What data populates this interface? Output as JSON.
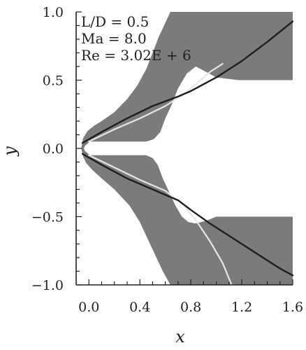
{
  "chart_data": {
    "type": "contour",
    "description_free": true,
    "xlabel": "x",
    "ylabel": "y",
    "xlim": [
      -0.1,
      1.6
    ],
    "ylim": [
      -1.0,
      1.0
    ],
    "x_ticks": [
      {
        "value": 0.0,
        "label": "0.0"
      },
      {
        "value": 0.4,
        "label": "0.4"
      },
      {
        "value": 0.8,
        "label": "0.8"
      },
      {
        "value": 1.2,
        "label": "1.2"
      },
      {
        "value": 1.6,
        "label": "1.6"
      }
    ],
    "y_ticks": [
      {
        "value": 1.0,
        "label": "1.0"
      },
      {
        "value": 0.5,
        "label": "0.5"
      },
      {
        "value": 0.0,
        "label": "0.0"
      },
      {
        "value": -0.5,
        "label": "−0.5"
      },
      {
        "value": -1.0,
        "label": "−1.0"
      }
    ],
    "annotations": [
      "L/D = 0.5",
      "Ma = 8.0",
      "Re = 3.02E + 6"
    ],
    "colors": {
      "field": "#7b7b7b",
      "shock_dark": "#1e1e1e",
      "shock_light": "#e6e6e6",
      "axis": "#231f20"
    },
    "domain_upper": [
      [
        -0.06,
        0.0
      ],
      [
        -0.045,
        0.075
      ],
      [
        -0.01,
        0.128
      ],
      [
        0.04,
        0.165
      ],
      [
        0.1,
        0.2
      ],
      [
        0.2,
        0.265
      ],
      [
        0.3,
        0.36
      ],
      [
        0.38,
        0.46
      ],
      [
        0.45,
        0.58
      ],
      [
        0.5,
        0.7
      ],
      [
        0.55,
        0.82
      ],
      [
        0.6,
        0.92
      ],
      [
        0.64,
        1.0
      ],
      [
        1.6,
        1.0
      ],
      [
        1.6,
        0.5
      ],
      [
        1.18,
        0.5
      ],
      [
        1.0,
        0.52
      ],
      [
        0.92,
        0.56
      ],
      [
        0.84,
        0.6
      ],
      [
        0.77,
        0.55
      ],
      [
        0.7,
        0.44
      ],
      [
        0.65,
        0.32
      ],
      [
        0.6,
        0.22
      ],
      [
        0.56,
        0.12
      ],
      [
        0.51,
        0.068
      ],
      [
        0.45,
        0.05
      ],
      [
        0.01,
        0.05
      ],
      [
        -0.03,
        0.02
      ],
      [
        -0.04,
        0.0
      ]
    ],
    "domain_lower": [
      [
        -0.06,
        0.0
      ],
      [
        -0.04,
        0.0
      ],
      [
        -0.03,
        -0.02
      ],
      [
        0.01,
        -0.05
      ],
      [
        0.45,
        -0.05
      ],
      [
        0.5,
        -0.07
      ],
      [
        0.54,
        -0.12
      ],
      [
        0.58,
        -0.22
      ],
      [
        0.63,
        -0.32
      ],
      [
        0.68,
        -0.42
      ],
      [
        0.73,
        -0.5
      ],
      [
        0.78,
        -0.54
      ],
      [
        0.84,
        -0.55
      ],
      [
        0.92,
        -0.53
      ],
      [
        1.0,
        -0.5
      ],
      [
        1.6,
        -0.5
      ],
      [
        1.6,
        -1.0
      ],
      [
        0.64,
        -1.0
      ],
      [
        0.58,
        -0.9
      ],
      [
        0.52,
        -0.78
      ],
      [
        0.46,
        -0.66
      ],
      [
        0.4,
        -0.54
      ],
      [
        0.32,
        -0.42
      ],
      [
        0.2,
        -0.3
      ],
      [
        0.1,
        -0.22
      ],
      [
        0.03,
        -0.16
      ],
      [
        -0.02,
        -0.11
      ],
      [
        -0.045,
        -0.06
      ]
    ],
    "shock_upper_dark": [
      [
        -0.05,
        0.04
      ],
      [
        0.1,
        0.12
      ],
      [
        0.3,
        0.22
      ],
      [
        0.5,
        0.31
      ],
      [
        0.7,
        0.38
      ],
      [
        0.8,
        0.42
      ],
      [
        1.0,
        0.52
      ],
      [
        1.2,
        0.64
      ],
      [
        1.4,
        0.78
      ],
      [
        1.6,
        0.93
      ]
    ],
    "shock_upper_light": [
      [
        0.0,
        0.05
      ],
      [
        0.2,
        0.14
      ],
      [
        0.4,
        0.22
      ],
      [
        0.6,
        0.31
      ],
      [
        0.75,
        0.4
      ],
      [
        0.85,
        0.48
      ],
      [
        0.95,
        0.56
      ],
      [
        1.05,
        0.62
      ]
    ],
    "shock_lower_dark": [
      [
        -0.05,
        -0.04
      ],
      [
        0.1,
        -0.12
      ],
      [
        0.3,
        -0.22
      ],
      [
        0.5,
        -0.3
      ],
      [
        0.7,
        -0.38
      ],
      [
        0.8,
        -0.45
      ],
      [
        0.95,
        -0.55
      ],
      [
        1.1,
        -0.64
      ],
      [
        1.3,
        -0.76
      ],
      [
        1.5,
        -0.88
      ],
      [
        1.6,
        -0.93
      ]
    ],
    "shock_lower_light": [
      [
        0.0,
        -0.05
      ],
      [
        0.2,
        -0.14
      ],
      [
        0.4,
        -0.23
      ],
      [
        0.6,
        -0.31
      ],
      [
        0.75,
        -0.42
      ],
      [
        0.85,
        -0.54
      ],
      [
        0.95,
        -0.68
      ],
      [
        1.05,
        -0.84
      ],
      [
        1.12,
        -1.0
      ]
    ]
  }
}
